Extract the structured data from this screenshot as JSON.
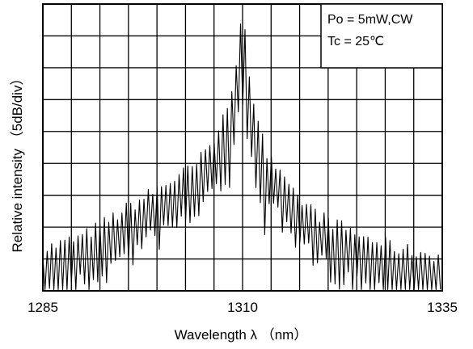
{
  "chart_data": {
    "type": "line",
    "title": "",
    "xlabel": "Wavelength  λ  （nm）",
    "ylabel": "Relative  intensity  （5dB/div）",
    "xlim": [
      1285,
      1335
    ],
    "xticks": [
      "1285",
      "1310",
      "1335"
    ],
    "ylim": [
      -45,
      0
    ],
    "y_units": "dB",
    "grid": true,
    "grid_divisions": {
      "x": 14,
      "y": 9
    },
    "annotation": [
      "Po = 5mW,CW",
      "Tc = 25℃"
    ],
    "annotation_placement": "top-right",
    "series": [
      {
        "mode_spacing_nm": 0.55,
        "envelope": {
          "x": [
            1285,
            1290,
            1295,
            1300,
            1304,
            1307,
            1309,
            1310,
            1311,
            1313,
            1316,
            1320,
            1325,
            1330,
            1335
          ],
          "y": [
            -39,
            -37,
            -33,
            -29,
            -26,
            -21,
            -12,
            -2,
            -13,
            -24,
            -30,
            -34,
            -37,
            -39,
            -40
          ]
        }
      }
    ]
  }
}
